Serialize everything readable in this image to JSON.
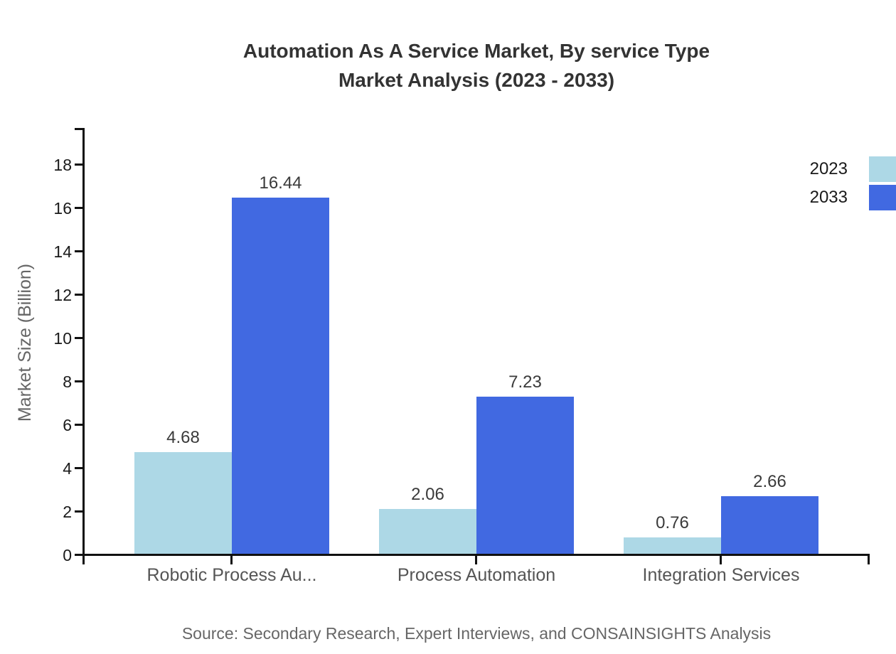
{
  "header": {
    "title_line1": "Automation As A Service Market, By service Type",
    "title_line2": "Market Analysis (2023 - 2033)"
  },
  "chart_data": {
    "type": "bar",
    "title": "Automation As A Service Market, By service Type Market Analysis (2023 - 2033)",
    "categories": [
      "Robotic Process Au...",
      "Process Automation",
      "Integration Services"
    ],
    "series": [
      {
        "name": "2023",
        "color": "#ADD8E6",
        "values": [
          4.68,
          2.06,
          0.76
        ]
      },
      {
        "name": "2033",
        "color": "#4169E1",
        "values": [
          16.44,
          7.23,
          2.66
        ]
      }
    ],
    "xlabel": "",
    "ylabel": "Market Size (Billion)",
    "ylim": [
      0,
      19.6
    ],
    "yticks": [
      0,
      2,
      4,
      6,
      8,
      10,
      12,
      14,
      16,
      18
    ],
    "grid": false,
    "legend_position": "top-right",
    "value_labels": true,
    "axis_color": "#111111"
  },
  "footer": {
    "source": "Source: Secondary Research, Expert Interviews, and CONSAINSIGHTS Analysis"
  }
}
